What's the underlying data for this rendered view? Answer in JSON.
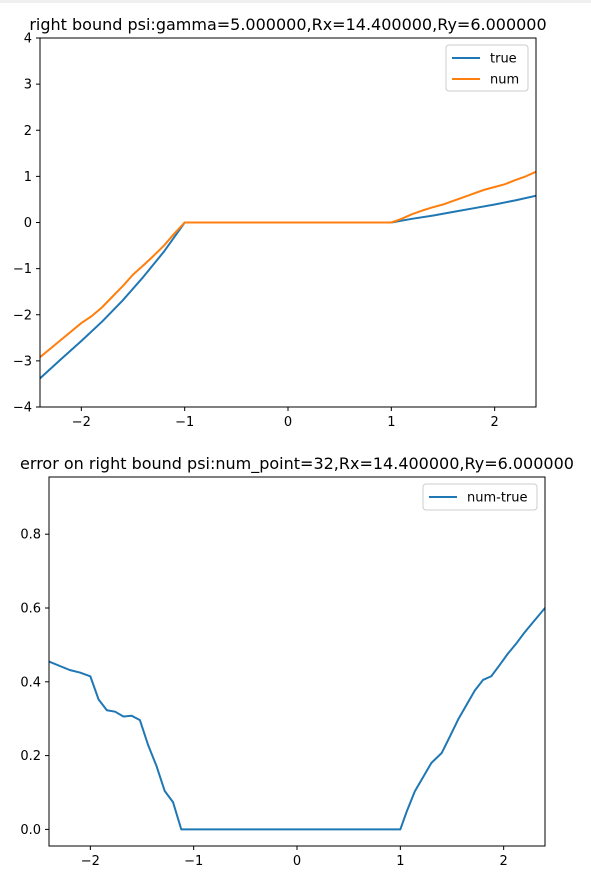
{
  "chart_data": [
    {
      "type": "line",
      "title": "right bound psi:gamma=5.000000,Rx=14.400000,Ry=6.000000",
      "xlabel": "",
      "ylabel": "",
      "xlim": [
        -2.4,
        2.4
      ],
      "ylim": [
        -4,
        4
      ],
      "xticks": [
        -2,
        -1,
        0,
        1,
        2
      ],
      "xtick_labels": [
        "−2",
        "−1",
        "0",
        "1",
        "2"
      ],
      "yticks": [
        -4,
        -3,
        -2,
        -1,
        0,
        1,
        2,
        3,
        4
      ],
      "ytick_labels": [
        "−4",
        "−3",
        "−2",
        "−1",
        "0",
        "1",
        "2",
        "3",
        "4"
      ],
      "grid": false,
      "legend_position": "top-right",
      "series": [
        {
          "name": "true",
          "color": "#1f77b4",
          "x": [
            -2.4,
            -2.2,
            -2.0,
            -1.8,
            -1.6,
            -1.4,
            -1.2,
            -1.0,
            1.0,
            1.2,
            1.4,
            1.6,
            1.8,
            2.0,
            2.2,
            2.4
          ],
          "y": [
            -3.38,
            -2.97,
            -2.57,
            -2.15,
            -1.69,
            -1.18,
            -0.63,
            0.0,
            0.0,
            0.08,
            0.15,
            0.23,
            0.31,
            0.39,
            0.48,
            0.58
          ]
        },
        {
          "name": "num",
          "color": "#ff7f0e",
          "x": [
            -2.4,
            -2.2,
            -2.0,
            -1.9,
            -1.8,
            -1.7,
            -1.6,
            -1.5,
            -1.4,
            -1.3,
            -1.2,
            -1.1,
            -1.0,
            1.0,
            1.1,
            1.2,
            1.3,
            1.4,
            1.5,
            1.6,
            1.7,
            1.8,
            1.9,
            2.0,
            2.1,
            2.2,
            2.3,
            2.4
          ],
          "y": [
            -2.92,
            -2.55,
            -2.18,
            -2.03,
            -1.84,
            -1.61,
            -1.38,
            -1.13,
            -0.93,
            -0.72,
            -0.5,
            -0.24,
            0.0,
            0.0,
            0.08,
            0.18,
            0.26,
            0.33,
            0.39,
            0.47,
            0.55,
            0.63,
            0.71,
            0.77,
            0.83,
            0.92,
            1.0,
            1.1
          ]
        }
      ]
    },
    {
      "type": "line",
      "title": "error on right bound psi:num_point=32,Rx=14.400000,Ry=6.000000",
      "xlabel": "",
      "ylabel": "",
      "xlim": [
        -2.4,
        2.4
      ],
      "ylim": [
        -0.045,
        0.955
      ],
      "xticks": [
        -2,
        -1,
        0,
        1,
        2
      ],
      "xtick_labels": [
        "−2",
        "−1",
        "0",
        "1",
        "2"
      ],
      "yticks": [
        0.0,
        0.2,
        0.4,
        0.6,
        0.8
      ],
      "ytick_labels": [
        "0.0",
        "0.2",
        "0.4",
        "0.6",
        "0.8"
      ],
      "grid": false,
      "legend_position": "top-right",
      "series": [
        {
          "name": "num-true",
          "color": "#1f77b4",
          "x": [
            -2.4,
            -2.2,
            -2.1,
            -2.05,
            -2.0,
            -1.92,
            -1.84,
            -1.76,
            -1.68,
            -1.6,
            -1.52,
            -1.44,
            -1.36,
            -1.28,
            -1.2,
            -1.12,
            -1.04,
            -1.0,
            1.0,
            1.06,
            1.14,
            1.2,
            1.3,
            1.4,
            1.48,
            1.56,
            1.64,
            1.72,
            1.8,
            1.88,
            1.96,
            2.04,
            2.12,
            2.2,
            2.28,
            2.4
          ],
          "y": [
            0.455,
            0.432,
            0.425,
            0.42,
            0.415,
            0.352,
            0.323,
            0.319,
            0.306,
            0.308,
            0.296,
            0.228,
            0.172,
            0.104,
            0.074,
            0.0,
            0.0,
            0.0,
            0.0,
            0.047,
            0.103,
            0.132,
            0.18,
            0.207,
            0.252,
            0.298,
            0.337,
            0.376,
            0.405,
            0.415,
            0.445,
            0.476,
            0.503,
            0.533,
            0.56,
            0.6
          ]
        }
      ]
    }
  ]
}
